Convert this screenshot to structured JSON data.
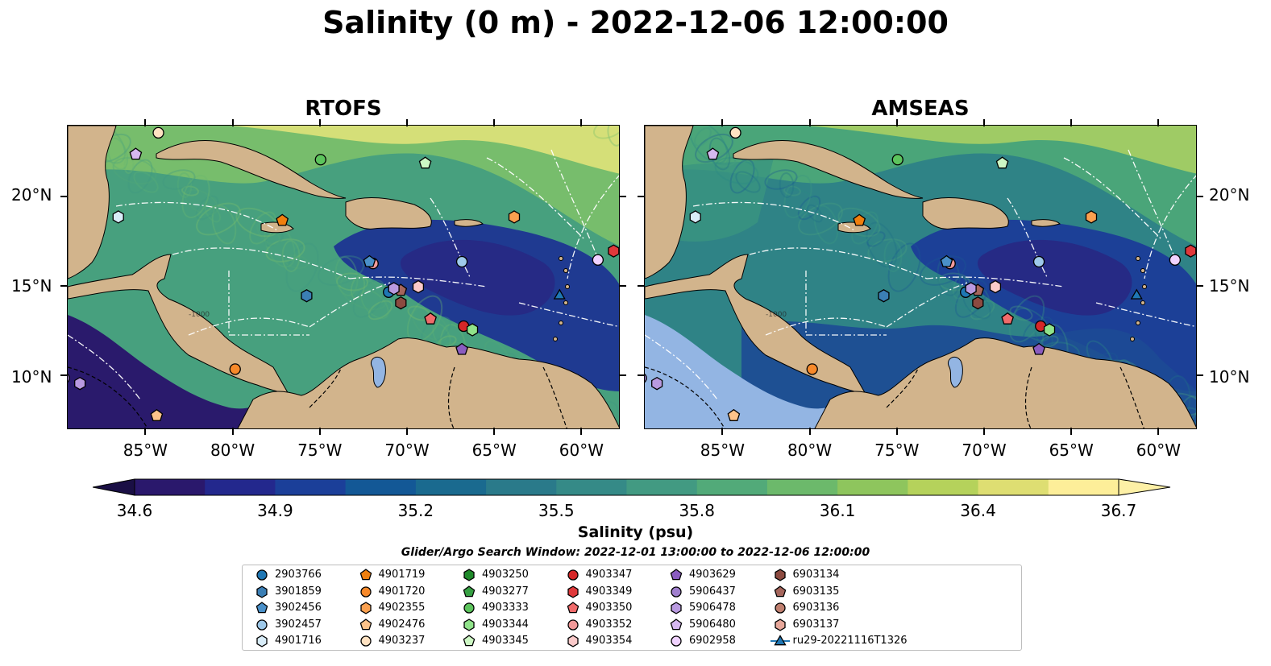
{
  "title": "Salinity (0 m) - 2022-12-06 12:00:00",
  "panels": [
    {
      "title": "RTOFS"
    },
    {
      "title": "AMSEAS"
    }
  ],
  "lon_labels": [
    "85°W",
    "80°W",
    "75°W",
    "70°W",
    "65°W",
    "60°W"
  ],
  "lat_labels": [
    "20°N",
    "15°N",
    "10°N"
  ],
  "contour_label": "-1000",
  "colorbar": {
    "min": 34.6,
    "max": 36.7,
    "ticks": [
      "34.6",
      "34.9",
      "35.2",
      "35.5",
      "35.8",
      "36.1",
      "36.4",
      "36.7"
    ],
    "label": "Salinity (psu)",
    "colormap": "haline",
    "colors": [
      "#2a186c",
      "#23288d",
      "#1b3f99",
      "#135896",
      "#1a6a8f",
      "#2a7a8a",
      "#358a87",
      "#429a82",
      "#52aa79",
      "#6cb96b",
      "#8ec55d",
      "#b5d25b",
      "#dede72",
      "#fdee99"
    ]
  },
  "search_window": "Glider/Argo Search Window: 2022-12-01 13:00:00 to 2022-12-06 12:00:00",
  "legend": [
    {
      "label": "2903766",
      "marker": "circle",
      "color": "#1f77b4"
    },
    {
      "label": "3901859",
      "marker": "hexagon",
      "color": "#3b7fb5"
    },
    {
      "label": "3902456",
      "marker": "pentagon",
      "color": "#4a90c9"
    },
    {
      "label": "3902457",
      "marker": "circle",
      "color": "#9ec9ea"
    },
    {
      "label": "4901716",
      "marker": "hexagon",
      "color": "#d8ecf8"
    },
    {
      "label": "4901719",
      "marker": "pentagon",
      "color": "#f07f0e"
    },
    {
      "label": "4901720",
      "marker": "circle",
      "color": "#f7892a"
    },
    {
      "label": "4902355",
      "marker": "hexagon",
      "color": "#fba04f"
    },
    {
      "label": "4902476",
      "marker": "pentagon",
      "color": "#fdc38a"
    },
    {
      "label": "4903237",
      "marker": "circle",
      "color": "#ffe2c2"
    },
    {
      "label": "4903250",
      "marker": "hexagon",
      "color": "#1f8a2a"
    },
    {
      "label": "4903277",
      "marker": "pentagon",
      "color": "#36a043"
    },
    {
      "label": "4903333",
      "marker": "circle",
      "color": "#5cc45c"
    },
    {
      "label": "4903344",
      "marker": "hexagon",
      "color": "#90e38a"
    },
    {
      "label": "4903345",
      "marker": "pentagon",
      "color": "#cdf7c4"
    },
    {
      "label": "4903347",
      "marker": "circle",
      "color": "#d62728"
    },
    {
      "label": "4903349",
      "marker": "hexagon",
      "color": "#e0393b"
    },
    {
      "label": "4903350",
      "marker": "pentagon",
      "color": "#f06b6b"
    },
    {
      "label": "4903352",
      "marker": "circle",
      "color": "#f29a9a"
    },
    {
      "label": "4903354",
      "marker": "hexagon",
      "color": "#fbcaca"
    },
    {
      "label": "4903629",
      "marker": "pentagon",
      "color": "#8a5cc0"
    },
    {
      "label": "5906437",
      "marker": "circle",
      "color": "#a07fce"
    },
    {
      "label": "5906478",
      "marker": "hexagon",
      "color": "#b99ae0"
    },
    {
      "label": "5906480",
      "marker": "pentagon",
      "color": "#d6b8f0"
    },
    {
      "label": "6902958",
      "marker": "circle",
      "color": "#f0d2ff"
    },
    {
      "label": "6903134",
      "marker": "hexagon",
      "color": "#8c4a40"
    },
    {
      "label": "6903135",
      "marker": "pentagon",
      "color": "#a5665c"
    },
    {
      "label": "6903136",
      "marker": "circle",
      "color": "#c08070"
    },
    {
      "label": "6903137",
      "marker": "hexagon",
      "color": "#e7a79a"
    },
    {
      "label": "ru29-20221116T1326",
      "marker": "triangle-line",
      "color": "#1f77b4"
    }
  ],
  "stations": [
    {
      "id": "3902457",
      "lon": -66.9,
      "lat": 16.4
    },
    {
      "id": "3901859",
      "lon": -75.8,
      "lat": 14.5
    },
    {
      "id": "2903766",
      "lon": -71.1,
      "lat": 14.7
    },
    {
      "id": "4903237",
      "lon": -84.3,
      "lat": 23.6
    },
    {
      "id": "5906480",
      "lon": -85.6,
      "lat": 22.4
    },
    {
      "id": "4901716",
      "lon": -86.6,
      "lat": 18.9
    },
    {
      "id": "4903333",
      "lon": -75.0,
      "lat": 22.1
    },
    {
      "id": "4903345",
      "lon": -69.0,
      "lat": 21.9
    },
    {
      "id": "4901719",
      "lon": -77.2,
      "lat": 18.7
    },
    {
      "id": "4902355",
      "lon": -63.9,
      "lat": 18.9
    },
    {
      "id": "4903352",
      "lon": -72.0,
      "lat": 16.3
    },
    {
      "id": "3902456",
      "lon": -72.2,
      "lat": 16.4
    },
    {
      "id": "6903134",
      "lon": -70.4,
      "lat": 14.1
    },
    {
      "id": "6903135",
      "lon": -70.4,
      "lat": 14.8
    },
    {
      "id": "5906478",
      "lon": -70.8,
      "lat": 14.9
    },
    {
      "id": "4903354",
      "lon": -69.4,
      "lat": 15.0
    },
    {
      "id": "4903350",
      "lon": -68.7,
      "lat": 13.2
    },
    {
      "id": "4903347",
      "lon": -66.8,
      "lat": 12.8
    },
    {
      "id": "4903344",
      "lon": -66.3,
      "lat": 12.6
    },
    {
      "id": "4903629",
      "lon": -66.9,
      "lat": 11.5
    },
    {
      "id": "6902958",
      "lon": -59.1,
      "lat": 16.5
    },
    {
      "id": "4903349",
      "lon": -58.2,
      "lat": 17.0
    },
    {
      "id": "ru29-20221116T1326",
      "lon": -61.3,
      "lat": 14.5
    },
    {
      "id": "4901720",
      "lon": -79.9,
      "lat": 10.4
    },
    {
      "id": "4902476",
      "lon": -84.4,
      "lat": 7.8
    },
    {
      "id": "5906437",
      "lon": -89.7,
      "lat": 9.9
    },
    {
      "id": "5906478",
      "lon": -88.8,
      "lat": 9.6
    },
    {
      "id": "4903347",
      "lon": -57.5,
      "lat": 12.8
    }
  ]
}
